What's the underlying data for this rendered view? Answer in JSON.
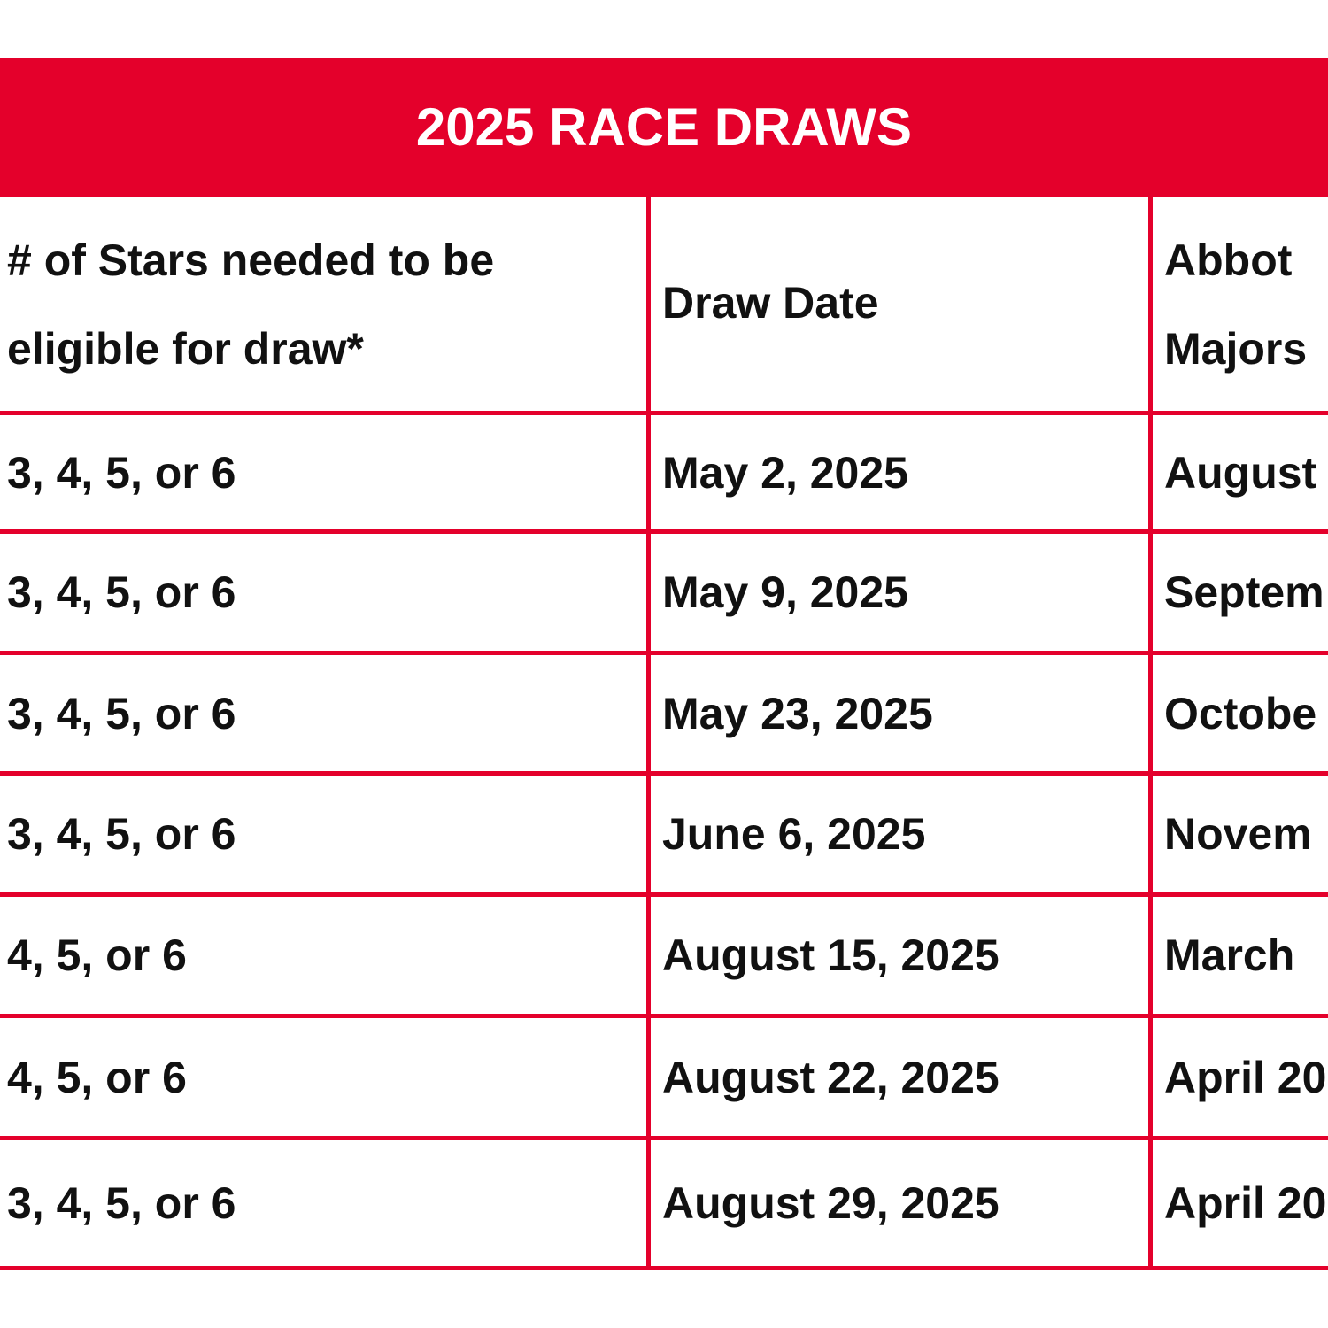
{
  "title": "2025 RACE DRAWS",
  "accent_color": "#e4002b",
  "headers": {
    "stars": [
      "# of Stars needed to be",
      "eligible for draw*"
    ],
    "draw_date": "Draw Date",
    "majors": [
      "Abbot",
      "Majors"
    ]
  },
  "rows": [
    {
      "stars": "3, 4, 5, or 6",
      "draw_date": "May 2, 2025",
      "race": "August"
    },
    {
      "stars": "3, 4, 5, or 6",
      "draw_date": "May 9, 2025",
      "race": "Septem"
    },
    {
      "stars": "3, 4, 5, or 6",
      "draw_date": "May 23, 2025",
      "race": "Octobe"
    },
    {
      "stars": "3, 4, 5, or 6",
      "draw_date": "June 6, 2025",
      "race": "Novem"
    },
    {
      "stars": "4, 5, or 6",
      "draw_date": "August 15, 2025",
      "race": "March"
    },
    {
      "stars": "4, 5, or 6",
      "draw_date": "August 22, 2025",
      "race": "April 20"
    },
    {
      "stars": "3, 4, 5, or 6",
      "draw_date": "August 29, 2025",
      "race": "April 20"
    }
  ]
}
